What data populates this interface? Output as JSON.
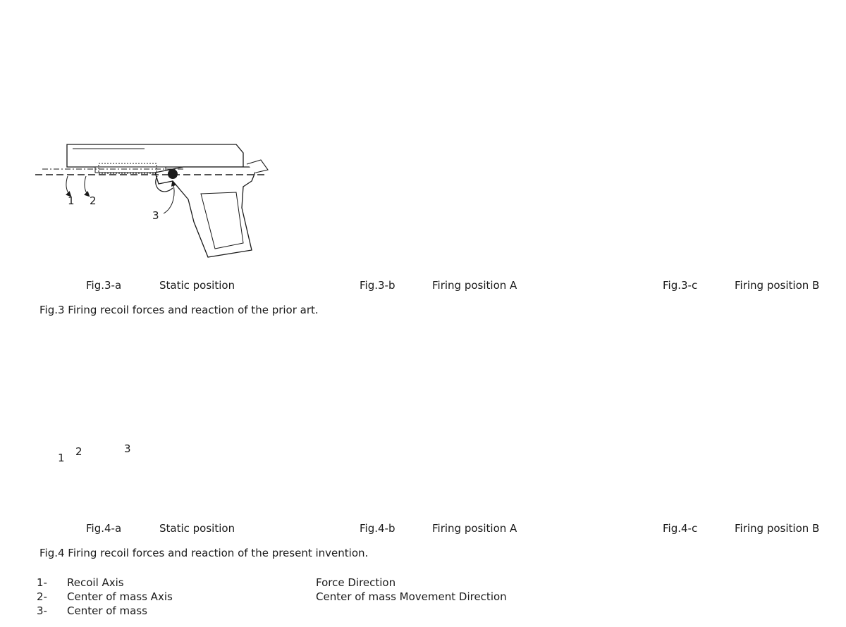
{
  "figures": [
    {
      "id": "Fig.3-a",
      "label": "Static position"
    },
    {
      "id": "Fig.3-b",
      "label": "Firing position A"
    },
    {
      "id": "Fig.3-c",
      "label": "Firing position B"
    },
    {
      "id": "Fig.4-a",
      "label": "Static position"
    },
    {
      "id": "Fig.4-b",
      "label": "Firing position A"
    },
    {
      "id": "Fig.4-c",
      "label": "Firing position B"
    }
  ],
  "captions": {
    "fig3": "Fig.3 Firing recoil forces and reaction of the prior art.",
    "fig4": "Fig.4 Firing recoil forces and reaction of the present invention."
  },
  "callouts": [
    "1",
    "2",
    "3"
  ],
  "legend": {
    "items": [
      {
        "num": "1-",
        "text": "Recoil Axis"
      },
      {
        "num": "2-",
        "text": "Center of mass Axis"
      },
      {
        "num": "3-",
        "text": "Center of mass"
      }
    ],
    "arrows": [
      {
        "style": "solid",
        "text": "Force Direction"
      },
      {
        "style": "dashed",
        "text": "Center of mass Movement Direction"
      }
    ]
  },
  "colors": {
    "ink": "#1a1a1a",
    "shade": "#c8c8c8"
  }
}
